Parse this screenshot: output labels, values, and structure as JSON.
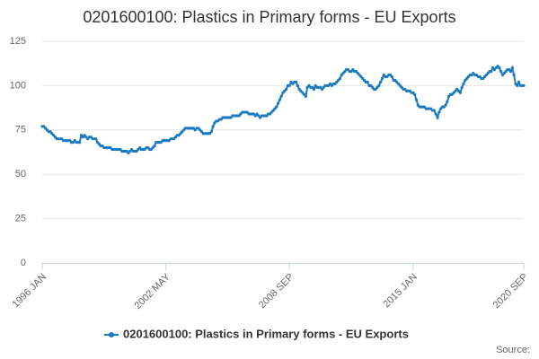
{
  "chart_data": {
    "type": "line",
    "title": "0201600100: Plastics in Primary forms - EU Exports",
    "source": "Source:",
    "categories": [
      "1996 JAN",
      null,
      null,
      null,
      null,
      null,
      null,
      null,
      null,
      null,
      null,
      null,
      null,
      null,
      null,
      null,
      null,
      null,
      null,
      null,
      null,
      null,
      null,
      null,
      null,
      null,
      null,
      null,
      null,
      null,
      null,
      null,
      null,
      null,
      null,
      null,
      null,
      null,
      null,
      null,
      null,
      null,
      null,
      null,
      null,
      null,
      null,
      null,
      null,
      null,
      null,
      null,
      null,
      null,
      null,
      null,
      null,
      null,
      null,
      null,
      null,
      null,
      null,
      null,
      null,
      null,
      null,
      null,
      null,
      null,
      null,
      null,
      null,
      null,
      null,
      null,
      "2002 MAY",
      null,
      null,
      null,
      null,
      null,
      null,
      null,
      null,
      null,
      null,
      null,
      null,
      null,
      null,
      null,
      null,
      null,
      null,
      null,
      null,
      null,
      null,
      null,
      null,
      null,
      null,
      null,
      null,
      null,
      null,
      null,
      null,
      null,
      null,
      null,
      null,
      null,
      null,
      null,
      null,
      null,
      null,
      null,
      null,
      null,
      null,
      null,
      null,
      null,
      null,
      null,
      null,
      null,
      null,
      null,
      null,
      null,
      null,
      null,
      null,
      null,
      null,
      null,
      null,
      null,
      null,
      null,
      null,
      null,
      null,
      null,
      null,
      null,
      null,
      null,
      "2008 SEP",
      null,
      null,
      null,
      null,
      null,
      null,
      null,
      null,
      null,
      null,
      null,
      null,
      null,
      null,
      null,
      null,
      null,
      null,
      null,
      null,
      null,
      null,
      null,
      null,
      null,
      null,
      null,
      null,
      null,
      null,
      null,
      null,
      null,
      null,
      null,
      null,
      null,
      null,
      null,
      null,
      null,
      null,
      null,
      null,
      null,
      null,
      null,
      null,
      null,
      null,
      null,
      null,
      null,
      null,
      null,
      null,
      null,
      null,
      null,
      null,
      null,
      null,
      null,
      null,
      null,
      null,
      null,
      null,
      null,
      null,
      null,
      null,
      null,
      null,
      null,
      "2015 JAN",
      null,
      null,
      null,
      null,
      null,
      null,
      null,
      null,
      null,
      null,
      null,
      null,
      null,
      null,
      null,
      null,
      null,
      null,
      null,
      null,
      null,
      null,
      null,
      null,
      null,
      null,
      null,
      null,
      null,
      null,
      null,
      null,
      null,
      null,
      null,
      null,
      null,
      null,
      null,
      null,
      null,
      null,
      null,
      null,
      null,
      null,
      null,
      null,
      null,
      null,
      null,
      null,
      null,
      null,
      null,
      null,
      null,
      null,
      null,
      null,
      null,
      null,
      null,
      null,
      null,
      null,
      null,
      "2020 SEP"
    ],
    "series": [
      {
        "name": "0201600100: Plastics in Primary forms - EU Exports",
        "color": "#1a7abf",
        "values": [
          77,
          77,
          76,
          75,
          74,
          74,
          73,
          72,
          71,
          70,
          70,
          70,
          70,
          69,
          69,
          69,
          69,
          69,
          68,
          68,
          69,
          68,
          68,
          68,
          72,
          71,
          72,
          71,
          70,
          71,
          71,
          70,
          70,
          70,
          68,
          67,
          66,
          66,
          65,
          65,
          65,
          65,
          65,
          64,
          64,
          64,
          64,
          64,
          64,
          63,
          63,
          63,
          63,
          62,
          63,
          64,
          63,
          63,
          63,
          64,
          65,
          64,
          64,
          64,
          65,
          65,
          64,
          64,
          65,
          66,
          68,
          68,
          68,
          68,
          69,
          69,
          69,
          69,
          69,
          70,
          70,
          70,
          71,
          72,
          72,
          73,
          74,
          75,
          76,
          76,
          76,
          76,
          76,
          76,
          75,
          76,
          76,
          75,
          74,
          73,
          73,
          73,
          73,
          73,
          74,
          77,
          79,
          80,
          80,
          81,
          81,
          82,
          82,
          82,
          82,
          82,
          82,
          83,
          83,
          83,
          83,
          83,
          84,
          85,
          85,
          85,
          85,
          84,
          84,
          84,
          84,
          83,
          84,
          83,
          82,
          83,
          83,
          83,
          83,
          84,
          84,
          85,
          86,
          87,
          88,
          90,
          92,
          94,
          96,
          97,
          98,
          100,
          100,
          102,
          101,
          102,
          102,
          100,
          98,
          97,
          96,
          95,
          94,
          99,
          100,
          99,
          99,
          98,
          100,
          99,
          99,
          99,
          98,
          99,
          100,
          100,
          100,
          101,
          100,
          101,
          101,
          102,
          103,
          104,
          106,
          107,
          108,
          109,
          109,
          108,
          108,
          109,
          108,
          108,
          107,
          106,
          105,
          104,
          103,
          102,
          102,
          100,
          100,
          99,
          98,
          98,
          99,
          100,
          102,
          104,
          106,
          105,
          105,
          106,
          106,
          105,
          103,
          103,
          102,
          101,
          100,
          99,
          98,
          98,
          97,
          97,
          97,
          96,
          96,
          95,
          92,
          89,
          88,
          88,
          88,
          88,
          87,
          87,
          87,
          87,
          86,
          86,
          84,
          82,
          85,
          87,
          88,
          88,
          89,
          91,
          94,
          95,
          95,
          96,
          97,
          98,
          97,
          96,
          99,
          101,
          103,
          104,
          105,
          106,
          106,
          107,
          106,
          106,
          105,
          105,
          104,
          104,
          105,
          106,
          107,
          108,
          108,
          110,
          109,
          110,
          111,
          110,
          108,
          106,
          107,
          108,
          109,
          109,
          108,
          110,
          106,
          101,
          100,
          102,
          100,
          100,
          100
        ]
      }
    ],
    "ylim": [
      0,
      125
    ],
    "yticks": [
      0,
      25,
      50,
      75,
      100,
      125
    ],
    "grid": true,
    "legend": "bottom"
  }
}
